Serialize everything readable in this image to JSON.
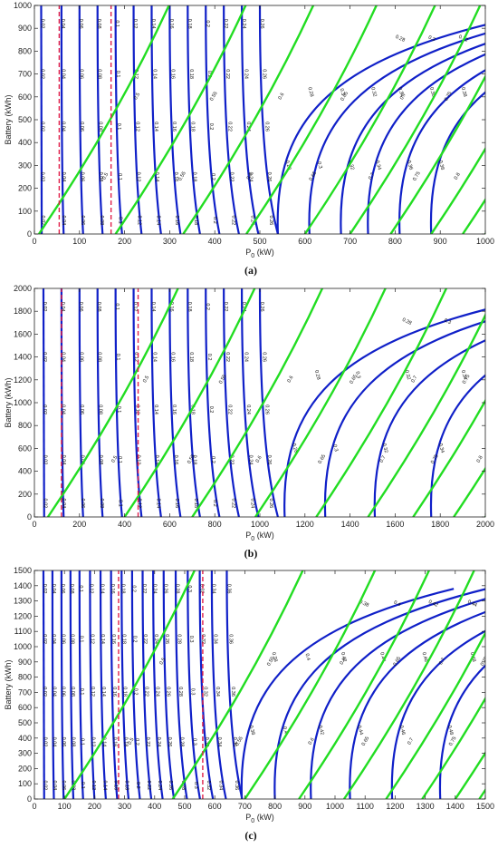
{
  "colors": {
    "blue": "#1020c8",
    "green": "#22dd22",
    "red": "#e0204a",
    "axis": "#222222"
  },
  "chart_data": [
    {
      "type": "contour",
      "caption": "(a)",
      "xlabel": "P",
      "xlabel_sub": "0",
      "xlabel_unit": " (kW)",
      "ylabel": "Battery (kWh)",
      "xlim": [
        0,
        1000
      ],
      "ylim": [
        0,
        1000
      ],
      "xticks": [
        0,
        100,
        200,
        300,
        400,
        500,
        600,
        700,
        800,
        900,
        1000
      ],
      "yticks": [
        0,
        100,
        200,
        300,
        400,
        500,
        600,
        700,
        800,
        900,
        1000
      ],
      "grid": false,
      "blue_contours": {
        "near_vertical_levels": [
          0.02,
          0.04,
          0.06,
          0.08,
          0.1,
          0.12,
          0.14,
          0.16,
          0.18,
          0.2,
          0.22,
          0.24,
          0.26
        ],
        "near_vertical_x": [
          15,
          60,
          100,
          140,
          180,
          220,
          260,
          300,
          340,
          380,
          420,
          460,
          500
        ],
        "curved_levels": [
          0.28,
          0.3,
          0.32,
          0.34,
          0.36,
          0.38
        ],
        "curved_x": [
          560,
          630,
          700,
          760,
          830,
          900
        ]
      },
      "green_contours": {
        "levels": [
          0.5,
          0.55,
          0.6,
          0.65,
          0.7,
          0.75,
          0.8,
          0.85,
          0.9,
          0.95
        ],
        "x_at_bottom": [
          10,
          180,
          330,
          470,
          600,
          700,
          790,
          880,
          950,
          1000
        ]
      },
      "red_dashed_x": [
        55,
        170
      ]
    },
    {
      "type": "contour",
      "caption": "(b)",
      "xlabel": "P",
      "xlabel_sub": "0",
      "xlabel_unit": " (kW)",
      "ylabel": "Battery (kWh)",
      "xlim": [
        0,
        2000
      ],
      "ylim": [
        0,
        2000
      ],
      "xticks": [
        0,
        200,
        400,
        600,
        800,
        1000,
        1200,
        1400,
        1600,
        1800,
        2000
      ],
      "yticks": [
        0,
        200,
        400,
        600,
        800,
        1000,
        1200,
        1400,
        1600,
        1800,
        2000
      ],
      "grid": false,
      "blue_contours": {
        "near_vertical_levels": [
          0.02,
          0.04,
          0.06,
          0.08,
          0.1,
          0.12,
          0.14,
          0.16,
          0.18,
          0.2,
          0.22,
          0.24,
          0.26
        ],
        "near_vertical_x": [
          40,
          120,
          200,
          280,
          360,
          440,
          520,
          600,
          680,
          760,
          840,
          920,
          1000
        ],
        "curved_levels": [
          0.28,
          0.3,
          0.32,
          0.34
        ],
        "curved_x": [
          1150,
          1330,
          1550,
          1800
        ]
      },
      "green_contours": {
        "levels": [
          0.5,
          0.55,
          0.6,
          0.65,
          0.7,
          0.75,
          0.8,
          0.85,
          0.9
        ],
        "x_at_bottom": [
          60,
          400,
          700,
          980,
          1250,
          1480,
          1680,
          1860,
          2000
        ]
      },
      "red_dashed_x": [
        120,
        460
      ]
    },
    {
      "type": "contour",
      "caption": "(c)",
      "xlabel": "P",
      "xlabel_sub": "0",
      "xlabel_unit": " (kW)",
      "ylabel": "Battery (kWh)",
      "xlim": [
        0,
        1500
      ],
      "ylim": [
        0,
        1500
      ],
      "xticks": [
        0,
        100,
        200,
        300,
        400,
        500,
        600,
        700,
        800,
        900,
        1000,
        1100,
        1200,
        1300,
        1400,
        1500
      ],
      "yticks": [
        0,
        100,
        200,
        300,
        400,
        500,
        600,
        700,
        800,
        900,
        1000,
        1100,
        1200,
        1300,
        1400,
        1500
      ],
      "grid": false,
      "blue_contours": {
        "near_vertical_levels": [
          0.02,
          0.04,
          0.06,
          0.08,
          0.1,
          0.12,
          0.14,
          0.16,
          0.18,
          0.2,
          0.22,
          0.24,
          0.26,
          0.28,
          0.3,
          0.32,
          0.34,
          0.36
        ],
        "near_vertical_x": [
          30,
          60,
          90,
          120,
          150,
          185,
          220,
          255,
          290,
          325,
          360,
          395,
          430,
          470,
          510,
          550,
          590,
          640
        ],
        "curved_levels": [
          0.38,
          0.4,
          0.42,
          0.44,
          0.46,
          0.48
        ],
        "curved_x": [
          720,
          830,
          950,
          1080,
          1220,
          1380
        ]
      },
      "green_contours": {
        "levels": [
          0.5,
          0.55,
          0.6,
          0.65,
          0.7,
          0.75,
          0.8,
          0.85,
          0.9,
          0.95
        ],
        "x_at_bottom": [
          100,
          460,
          700,
          880,
          1030,
          1170,
          1290,
          1400,
          1480,
          1500
        ]
      },
      "red_dashed_x": [
        280,
        560
      ]
    }
  ]
}
